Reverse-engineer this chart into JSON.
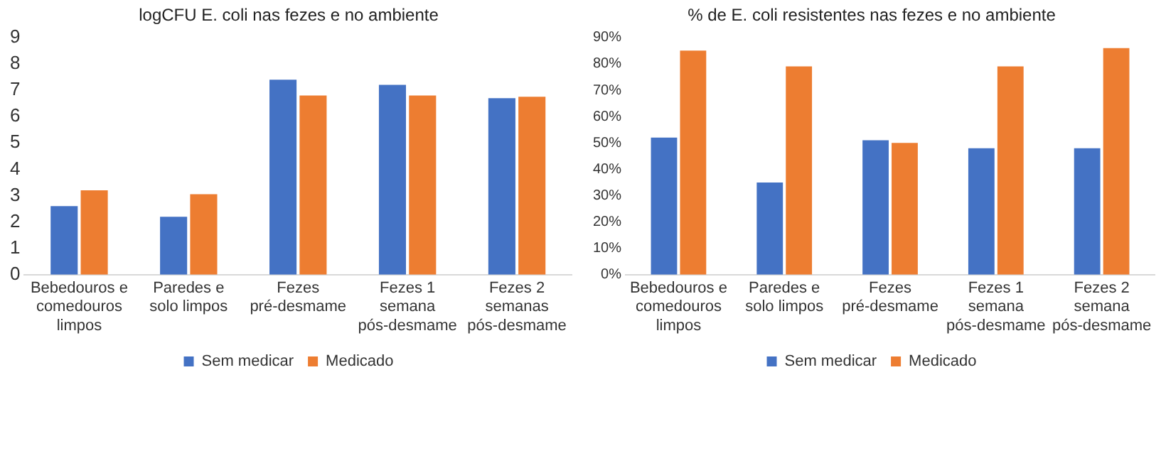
{
  "chart_data": [
    {
      "type": "bar",
      "title": "logCFU E. coli nas fezes e no ambiente",
      "categories": [
        "Bebedouros e comedouros limpos",
        "Paredes e solo limpos",
        "Fezes pré-desmame",
        "Fezes 1 semana pós-desmame",
        "Fezes 2 semanas pós-desmame"
      ],
      "series": [
        {
          "name": "Sem medicar",
          "color": "#4472c4",
          "values": [
            2.6,
            2.2,
            7.4,
            7.2,
            6.7
          ]
        },
        {
          "name": "Medicado",
          "color": "#ed7d31",
          "values": [
            3.2,
            3.05,
            6.8,
            6.8,
            6.75
          ]
        }
      ],
      "ylim": [
        0,
        9
      ],
      "yticks": [
        0,
        1,
        2,
        3,
        4,
        5,
        6,
        7,
        8,
        9
      ],
      "grid": false,
      "legend": "bottom"
    },
    {
      "type": "bar",
      "title": "% de E. coli resistentes nas fezes e no ambiente",
      "categories": [
        "Bebedouros e comedouros limpos",
        "Paredes e solo limpos",
        "Fezes pré-desmame",
        "Fezes 1 semana pós-desmame",
        "Fezes 2 semana pós-desmame"
      ],
      "series": [
        {
          "name": "Sem medicar",
          "color": "#4472c4",
          "values": [
            52,
            35,
            51,
            48,
            48
          ]
        },
        {
          "name": "Medicado",
          "color": "#ed7d31",
          "values": [
            85,
            79,
            50,
            79,
            86
          ]
        }
      ],
      "ylim": [
        0,
        90
      ],
      "yticks": [
        {
          "value": 0,
          "label": "0%"
        },
        {
          "value": 10,
          "label": "10%"
        },
        {
          "value": 20,
          "label": "20%"
        },
        {
          "value": 30,
          "label": "30%"
        },
        {
          "value": 40,
          "label": "40%"
        },
        {
          "value": 50,
          "label": "50%"
        },
        {
          "value": 60,
          "label": "60%"
        },
        {
          "value": 70,
          "label": "70%"
        },
        {
          "value": 80,
          "label": "80%"
        },
        {
          "value": 90,
          "label": "90%"
        }
      ],
      "grid": false,
      "legend": "bottom"
    }
  ]
}
